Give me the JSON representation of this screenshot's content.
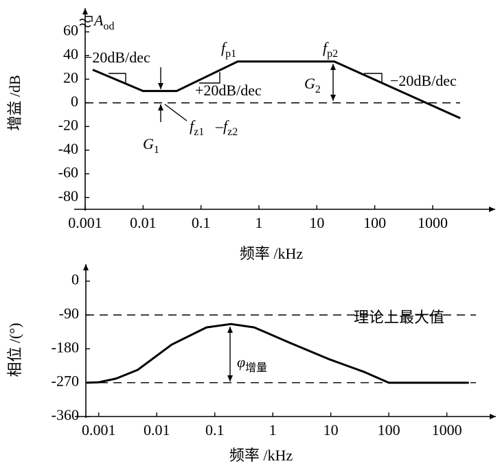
{
  "chart_data": [
    {
      "type": "line",
      "log_x": true,
      "color": "#000000",
      "ylabel": "增益 /dB",
      "xlabel": "频率 /kHz",
      "x": [
        0.00135,
        0.01,
        0.038,
        0.43,
        20,
        3000
      ],
      "values": [
        28,
        10,
        10,
        35,
        35,
        -13
      ],
      "xlim": [
        0.001,
        12000
      ],
      "xticks": [
        0.001,
        0.01,
        0.1,
        1,
        10,
        100,
        1000
      ],
      "ylim": [
        -90,
        80
      ],
      "yticks": [
        -80,
        -60,
        -40,
        -20,
        0,
        20,
        40,
        60
      ],
      "reference_lines": [
        0
      ],
      "annotations": [
        {
          "text": "A",
          "sub": "od"
        },
        {
          "text": "−20dB/dec"
        },
        {
          "text": "f",
          "sub": "p1"
        },
        {
          "text": "f",
          "sub": "p2"
        },
        {
          "text": "+20dB/dec"
        },
        {
          "text": "G",
          "sub": "2"
        },
        {
          "text": "−20dB/dec"
        },
        {
          "text": "f",
          "sub": "z1"
        },
        {
          "text": "–f",
          "sub": "z2"
        },
        {
          "text": "G",
          "sub": "1"
        }
      ]
    },
    {
      "type": "line",
      "log_x": true,
      "color": "#000000",
      "ylabel": "相位 /(°)",
      "xlabel": "频率 /kHz",
      "x": [
        0.00062,
        0.001,
        0.002,
        0.0047,
        0.018,
        0.072,
        0.19,
        0.48,
        1.9,
        9.5,
        37,
        100,
        2400
      ],
      "values": [
        -270,
        -269,
        -259,
        -236,
        -169,
        -123,
        -114,
        -123,
        -163,
        -208,
        -241,
        -270,
        -270
      ],
      "xlim": [
        0.0006,
        7000
      ],
      "xticks": [
        0.001,
        0.01,
        0.1,
        1,
        10,
        100,
        1000
      ],
      "ylim": [
        -360,
        45
      ],
      "yticks": [
        -360,
        -270,
        -180,
        -90,
        0
      ],
      "reference_lines": [
        -90,
        -270
      ],
      "annotations": [
        {
          "text": "理论上最大值"
        },
        {
          "text": "φ",
          "sub": "增量"
        }
      ]
    }
  ]
}
